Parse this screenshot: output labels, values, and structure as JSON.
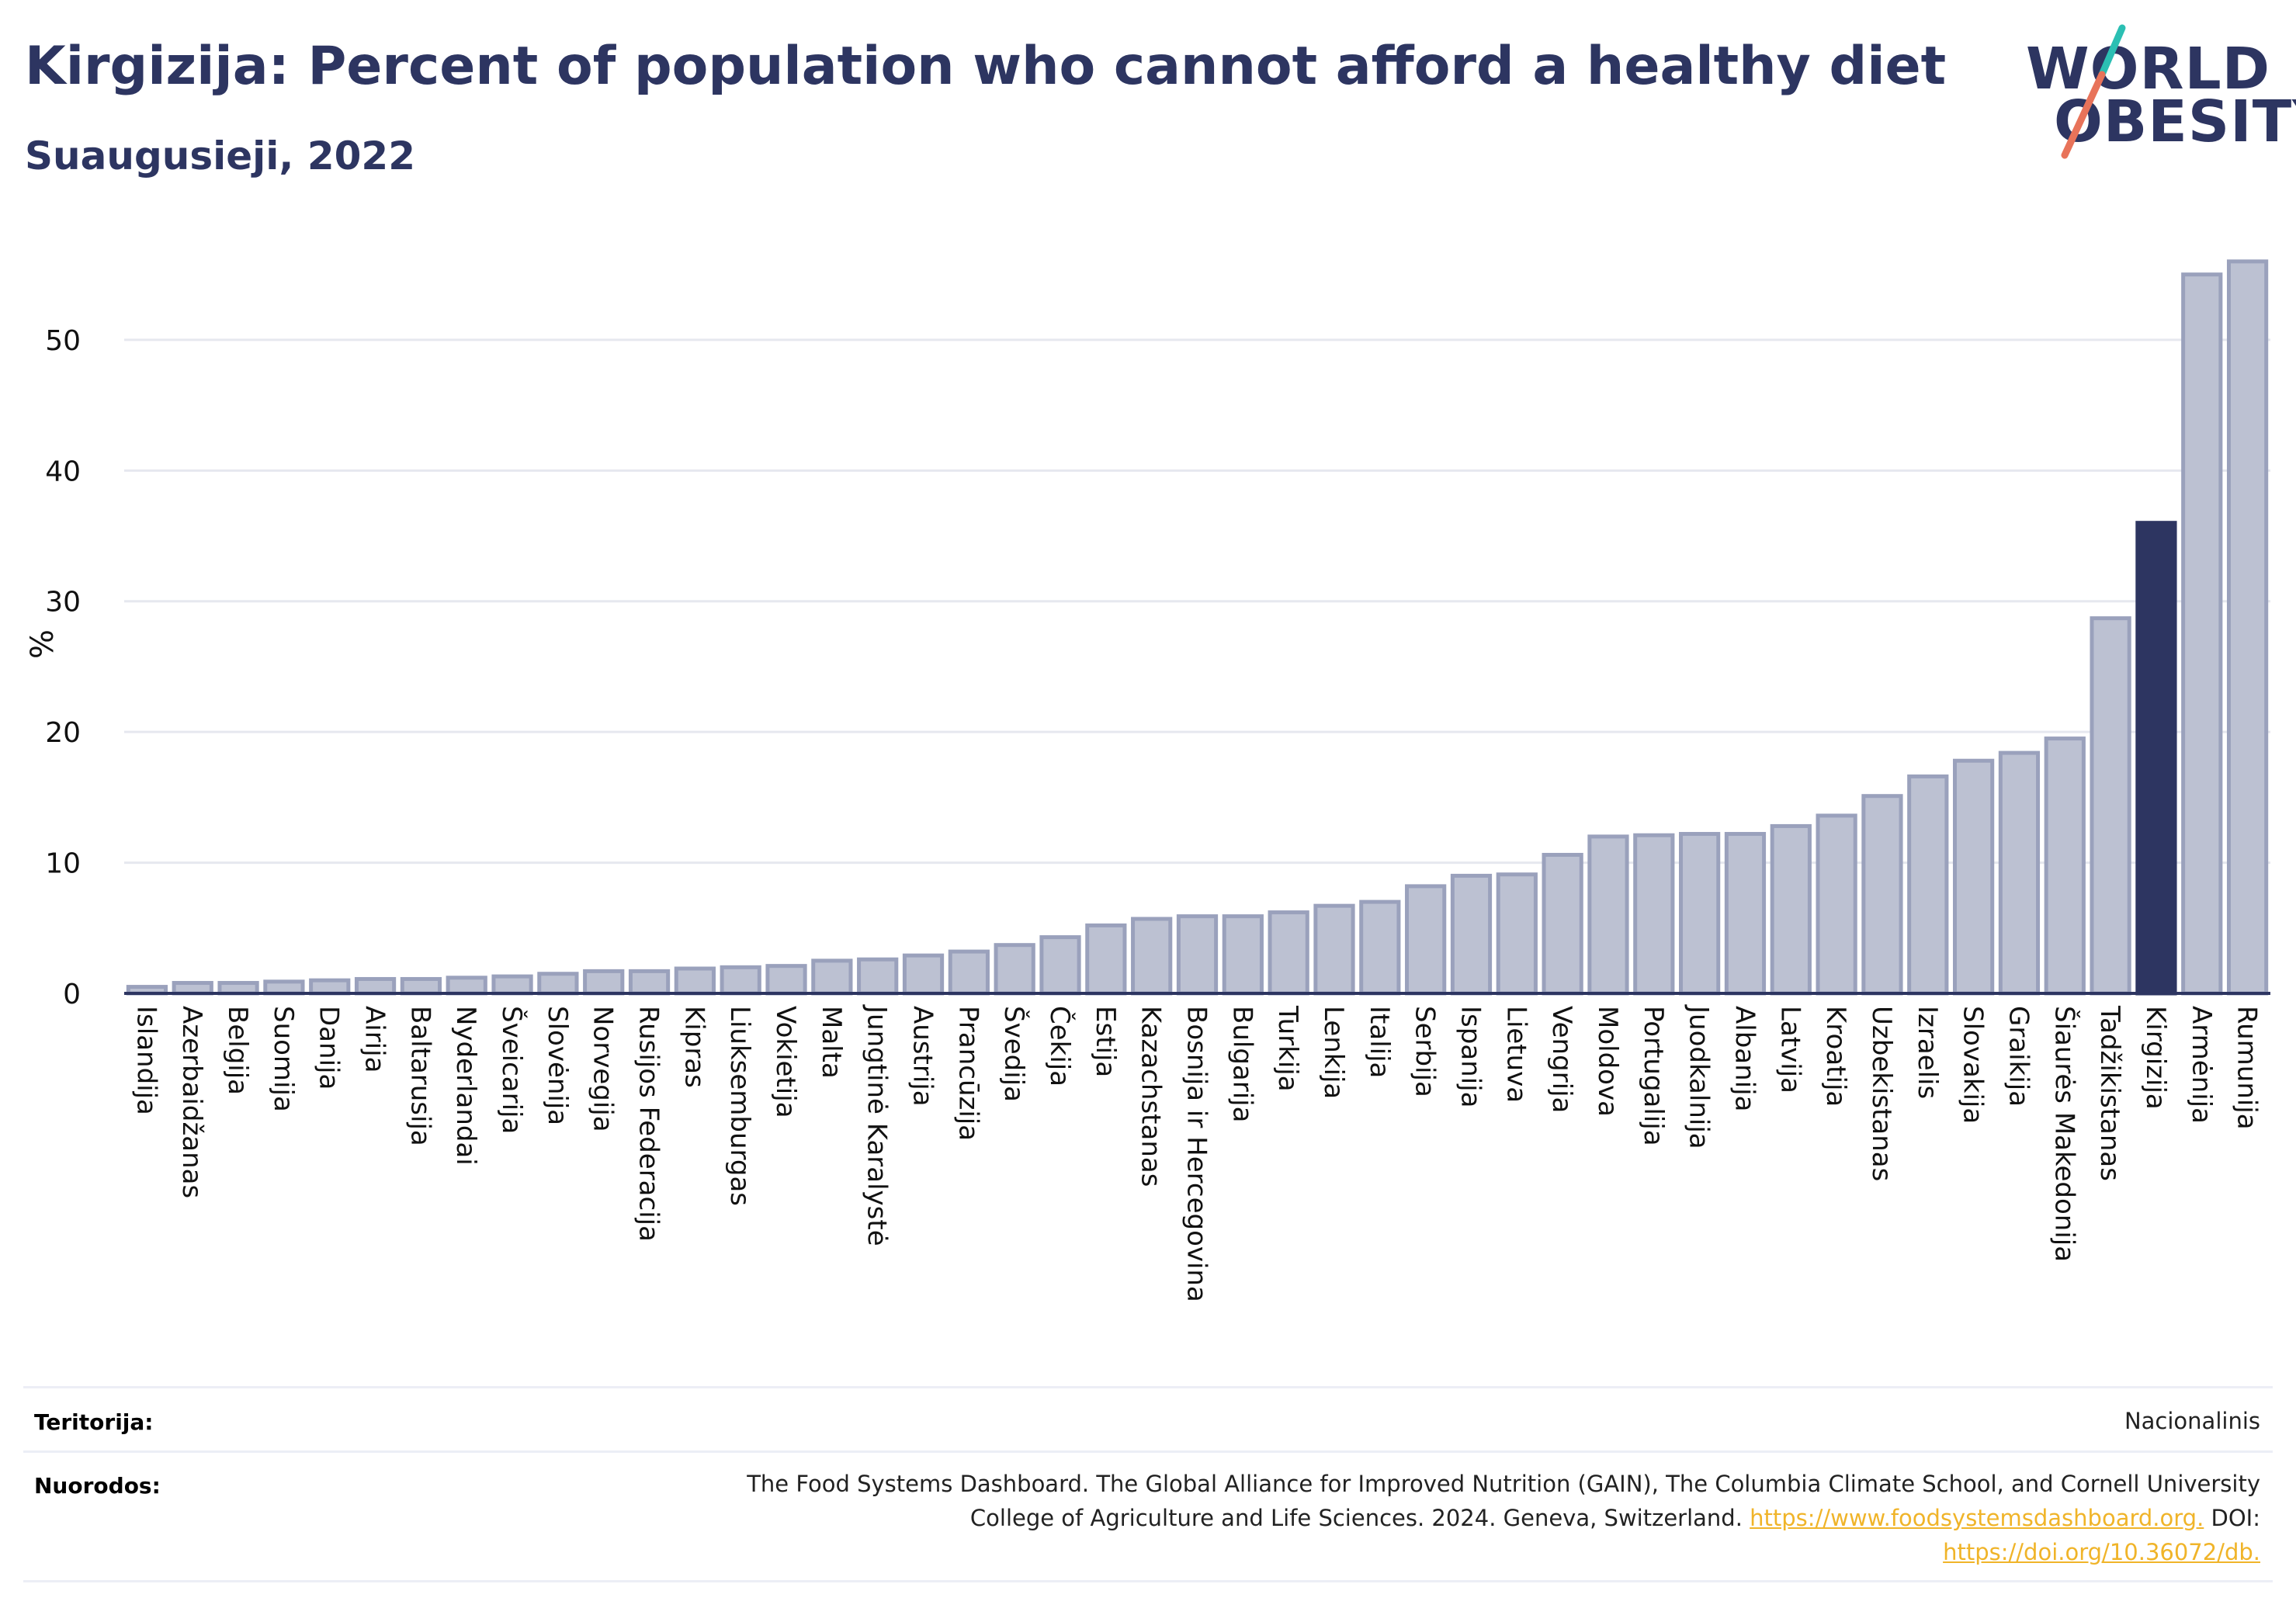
{
  "title": "Kirgizija: Percent of population who cannot afford a healthy diet",
  "subtitle": "Suaugusieji, 2022",
  "logo": {
    "line1": "WORLD",
    "line2": "OBESITY"
  },
  "colors": {
    "highlight": "#2d3561",
    "bar_fill": "#bcc1d2",
    "bar_stroke": "#9aa1bc",
    "slash_teal": "#2bbfb3",
    "slash_coral": "#e8735a",
    "link": "#f0b429"
  },
  "chart_data": {
    "type": "bar",
    "ylabel": "%",
    "ylim": [
      0,
      57
    ],
    "yticks": [
      0,
      10,
      20,
      30,
      40,
      50
    ],
    "grid": true,
    "highlight": "Kirgizija",
    "categories": [
      "Islandija",
      "Azerbaidžanas",
      "Belgija",
      "Suomija",
      "Danija",
      "Airija",
      "Baltarusija",
      "Nyderlandai",
      "Šveicarija",
      "Slovėnija",
      "Norvegija",
      "Rusijos Federacija",
      "Kipras",
      "Liuksemburgas",
      "Vokietija",
      "Malta",
      "Jungtinė Karalystė",
      "Austrija",
      "Prancūzija",
      "Švedija",
      "Čekija",
      "Estija",
      "Kazachstanas",
      "Bosnija ir Hercegovina",
      "Bulgarija",
      "Turkija",
      "Lenkija",
      "Italija",
      "Serbija",
      "Ispanija",
      "Lietuva",
      "Vengrija",
      "Moldova",
      "Portugalija",
      "Juodkalnija",
      "Albanija",
      "Latvija",
      "Kroatija",
      "Uzbekistanas",
      "Izraelis",
      "Slovakija",
      "Graikija",
      "Šiaurės Makedonija",
      "Tadžikistanas",
      "Kirgizija",
      "Armėnija",
      "Rumunija"
    ],
    "values": [
      0.5,
      0.8,
      0.8,
      0.9,
      1.0,
      1.1,
      1.1,
      1.2,
      1.3,
      1.5,
      1.7,
      1.7,
      1.9,
      2.0,
      2.1,
      2.5,
      2.6,
      2.9,
      3.2,
      3.7,
      4.3,
      5.2,
      5.7,
      5.9,
      5.9,
      6.2,
      6.7,
      7.0,
      8.2,
      9.0,
      9.1,
      10.6,
      12.0,
      12.1,
      12.2,
      12.2,
      12.8,
      13.6,
      15.1,
      16.6,
      17.8,
      18.4,
      19.5,
      28.7,
      36.0,
      55.0,
      56.0
    ]
  },
  "footer": {
    "territory_label": "Teritorija:",
    "territory_value": "Nacionalinis",
    "sources_label": "Nuorodos:",
    "sources_line1": "The Food Systems Dashboard. The Global Alliance for Improved Nutrition (GAIN), The Columbia Climate School, and Cornell University",
    "sources_line2": "College of Agriculture and Life Sciences. 2024. Geneva, Switzerland.",
    "sources_link1": "https://www.foodsystemsdashboard.org.",
    "sources_doi_label": "DOI:",
    "sources_link2": "https://doi.org/10.36072/db."
  }
}
